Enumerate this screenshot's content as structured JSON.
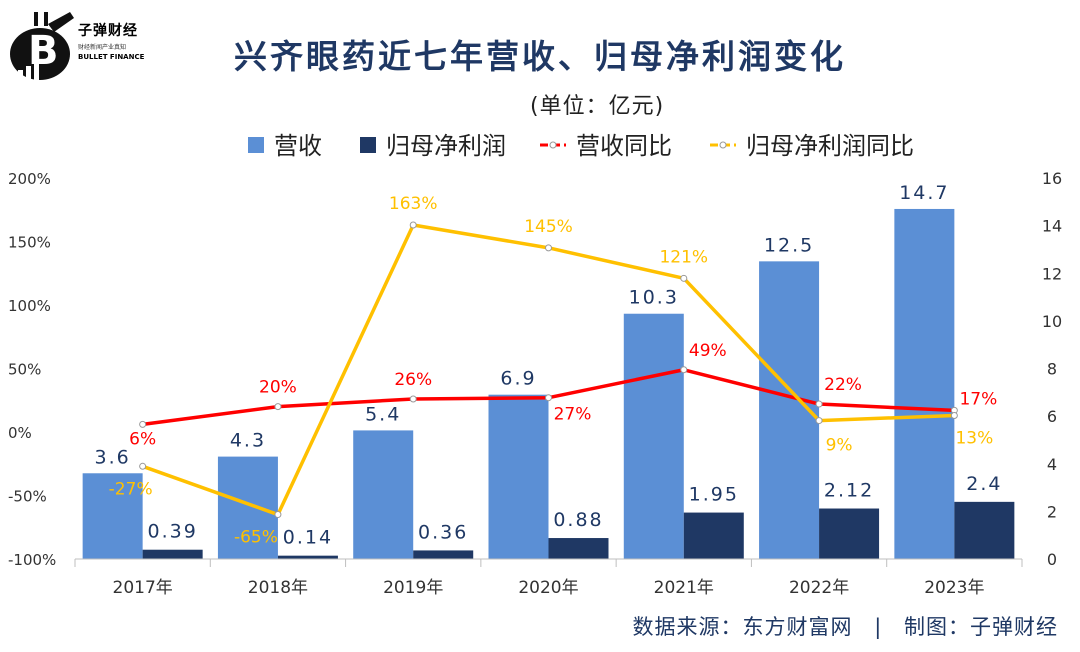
{
  "header": {
    "title": "兴齐眼药近七年营收、归母净利润变化",
    "unit": "(单位：亿元)"
  },
  "logo": {
    "cn": "子弹财经",
    "sub": "财经新闻产业真知",
    "en": "BULLET FINANCE"
  },
  "footer": {
    "source": "数据来源：东方财富网",
    "separator": "|",
    "credit": "制图：子弹财经"
  },
  "colors": {
    "revenue": "#5b8fd5",
    "profit": "#1f3864",
    "revenue_yoy": "#ff0000",
    "profit_yoy": "#ffc000",
    "title": "#1f3864"
  },
  "chart_data": {
    "type": "bar",
    "categories": [
      "2017年",
      "2018年",
      "2019年",
      "2020年",
      "2021年",
      "2022年",
      "2023年"
    ],
    "series": [
      {
        "name": "营收",
        "type": "bar",
        "axis": "right",
        "values": [
          3.6,
          4.3,
          5.4,
          6.9,
          10.3,
          12.5,
          14.7
        ],
        "labels": [
          "3.6",
          "4.3",
          "5.4",
          "6.9",
          "10.3",
          "12.5",
          "14.7"
        ]
      },
      {
        "name": "归母净利润",
        "type": "bar",
        "axis": "right",
        "values": [
          0.39,
          0.14,
          0.36,
          0.88,
          1.95,
          2.12,
          2.4
        ],
        "labels": [
          "0.39",
          "0.14",
          "0.36",
          "0.88",
          "1.95",
          "2.12",
          "2.4"
        ]
      },
      {
        "name": "营收同比",
        "type": "line",
        "axis": "left",
        "values": [
          6,
          20,
          26,
          27,
          49,
          22,
          17
        ],
        "labels": [
          "6%",
          "20%",
          "26%",
          "27%",
          "49%",
          "22%",
          "17%"
        ]
      },
      {
        "name": "归母净利润同比",
        "type": "line",
        "axis": "left",
        "values": [
          -27,
          -65,
          163,
          145,
          121,
          9,
          13
        ],
        "labels": [
          "-27%",
          "-65%",
          "163%",
          "145%",
          "121%",
          "9%",
          "13%"
        ]
      }
    ],
    "y_left": {
      "range": [
        -100,
        200
      ],
      "ticks": [
        "200%",
        "150%",
        "100%",
        "50%",
        "0%",
        "-50%",
        "-100%"
      ],
      "values": [
        200,
        150,
        100,
        50,
        0,
        -50,
        -100
      ]
    },
    "y_right": {
      "range": [
        0,
        16
      ],
      "ticks": [
        "16",
        "14",
        "12",
        "10",
        "8",
        "6",
        "4",
        "2",
        "0"
      ],
      "values": [
        16,
        14,
        12,
        10,
        8,
        6,
        4,
        2,
        0
      ]
    },
    "legend_position": "top",
    "grid": false
  }
}
